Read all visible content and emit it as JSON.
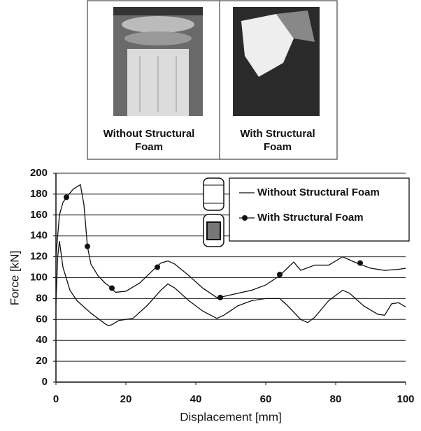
{
  "photos": [
    {
      "caption": [
        "Without Structural",
        "Foam"
      ]
    },
    {
      "caption": [
        "With Structural",
        "Foam"
      ]
    }
  ],
  "chart_data": {
    "type": "line",
    "xlabel": "Displacement [mm]",
    "ylabel": "Force [kN]",
    "xlim": [
      0,
      100
    ],
    "xticks": [
      0,
      20,
      40,
      60,
      80,
      100
    ],
    "ylim": [
      0,
      200
    ],
    "yticks": [
      0,
      20,
      40,
      60,
      80,
      100,
      120,
      140,
      160,
      180,
      200
    ],
    "grid": true,
    "legend": "upper right",
    "series": [
      {
        "name": "Without Structural Foam",
        "color": "#111111",
        "x": [
          0,
          0.5,
          1,
          2,
          4,
          6,
          8,
          10,
          12,
          14,
          15,
          16,
          18,
          22,
          26,
          30,
          32,
          34,
          38,
          42,
          46,
          48,
          52,
          56,
          60,
          64,
          66,
          70,
          72,
          74,
          78,
          82,
          84,
          88,
          92,
          94,
          96,
          98,
          100
        ],
        "values": [
          75,
          120,
          135,
          110,
          88,
          78,
          72,
          66,
          61,
          56,
          54,
          55,
          59,
          61,
          73,
          88,
          94,
          90,
          78,
          68,
          61,
          64,
          73,
          78,
          80,
          80,
          74,
          60,
          57,
          62,
          78,
          88,
          85,
          73,
          65,
          64,
          75,
          76,
          72
        ]
      },
      {
        "name": "With Structural Foam",
        "color": "#111111",
        "x": [
          0,
          1,
          2,
          3,
          5,
          7,
          8,
          9,
          10,
          12,
          14,
          16,
          17,
          20,
          24,
          28,
          30,
          32,
          34,
          38,
          42,
          46,
          48,
          52,
          56,
          60,
          64,
          68,
          70,
          74,
          78,
          82,
          86,
          90,
          94,
          98,
          100
        ],
        "values": [
          120,
          160,
          172,
          177,
          185,
          189,
          170,
          130,
          113,
          102,
          95,
          90,
          86,
          87,
          95,
          108,
          114,
          116,
          113,
          102,
          90,
          81,
          82,
          85,
          88,
          93,
          102,
          115,
          107,
          112,
          112,
          120,
          114,
          109,
          107,
          108,
          109
        ],
        "markers": {
          "x": [
            3,
            9,
            16,
            29,
            47,
            64,
            87
          ],
          "values": [
            177,
            130,
            90,
            110,
            81,
            103,
            114
          ]
        }
      }
    ]
  }
}
